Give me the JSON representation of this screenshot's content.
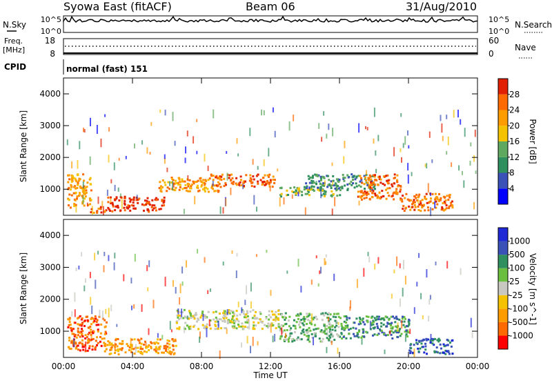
{
  "header": {
    "station": "Syowa East (fitACF)",
    "beam": "Beam 06",
    "date": "31/Aug/2010"
  },
  "panels": {
    "nsky": {
      "label": "N.Sky",
      "right_label": "N.Search",
      "ticks": [
        "10^5",
        "10^0"
      ],
      "right_ticks": [
        "10^5",
        "10^0"
      ]
    },
    "freq": {
      "label_line1": "Freq.",
      "label_line2": "[MHz]",
      "ticks": [
        "18",
        "8"
      ],
      "right_label": "Nave",
      "right_ticks": [
        "60",
        "0"
      ]
    },
    "cpid": {
      "label": "CPID",
      "value": "normal (fast) 151"
    }
  },
  "colors": {
    "power": [
      "#0000ff",
      "#3a52b8",
      "#2f8f5f",
      "#5fa85f",
      "#f5c200",
      "#ff9d00",
      "#ff6a00",
      "#e02000"
    ],
    "velocity": [
      "#ff0000",
      "#ff6a00",
      "#ff9d00",
      "#f5c200",
      "#c8c8c0",
      "#6abf40",
      "#2f8f5f",
      "#3a52b8",
      "#1f2ad6"
    ]
  },
  "chart_data": [
    {
      "type": "heatmap",
      "title": "Power",
      "ylabel": "Slant Range [km]",
      "colorbar_label": "Power [dB]",
      "colorbar_ticks": [
        "28",
        "24",
        "20",
        "16",
        "12",
        "8",
        "4"
      ],
      "y_ticks": [
        "4000",
        "3000",
        "2000",
        "1000"
      ],
      "ylim": [
        180,
        4500
      ],
      "xlim": [
        0,
        24
      ],
      "bands": [
        {
          "t": [
            0.2,
            1.6
          ],
          "r": [
            450,
            1500
          ],
          "c": 5
        },
        {
          "t": [
            1.5,
            2.5
          ],
          "r": [
            280,
            500
          ],
          "c": 6
        },
        {
          "t": [
            2.5,
            5.8
          ],
          "r": [
            320,
            800
          ],
          "c": 7
        },
        {
          "t": [
            5.5,
            9.0
          ],
          "r": [
            950,
            1400
          ],
          "c": 5
        },
        {
          "t": [
            8.5,
            12.2
          ],
          "r": [
            1100,
            1500
          ],
          "c": 6
        },
        {
          "t": [
            12.5,
            16.0
          ],
          "r": [
            800,
            1100
          ],
          "c": 3
        },
        {
          "t": [
            14.0,
            18.0
          ],
          "r": [
            1000,
            1500
          ],
          "c": 2
        },
        {
          "t": [
            17.0,
            19.5
          ],
          "r": [
            700,
            1500
          ],
          "c": 6
        },
        {
          "t": [
            19.5,
            22.5
          ],
          "r": [
            350,
            900
          ],
          "c": 6
        }
      ]
    },
    {
      "type": "heatmap",
      "title": "Velocity",
      "xlabel": "Time UT",
      "ylabel": "Slant Range [km]",
      "colorbar_label": "Velocity [m s^-1]",
      "colorbar_ticks": [
        "1000",
        "500",
        "100",
        "25",
        "-25",
        "-100",
        "-500",
        "-1000"
      ],
      "y_ticks": [
        "4000",
        "3000",
        "2000",
        "1000"
      ],
      "x_ticks": [
        "00:00",
        "04:00",
        "08:00",
        "12:00",
        "16:00",
        "20:00",
        "00:00"
      ],
      "ylim": [
        180,
        4500
      ],
      "xlim": [
        0,
        24
      ],
      "bands": [
        {
          "t": [
            0.2,
            2.5
          ],
          "r": [
            400,
            1500
          ],
          "c": 1
        },
        {
          "t": [
            2.5,
            6.5
          ],
          "r": [
            300,
            800
          ],
          "c": 2
        },
        {
          "t": [
            6.5,
            12.5
          ],
          "r": [
            1100,
            1700
          ],
          "c": 4
        },
        {
          "t": [
            12.5,
            16.0
          ],
          "r": [
            700,
            1600
          ],
          "c": 5
        },
        {
          "t": [
            16.0,
            20.0
          ],
          "r": [
            800,
            1500
          ],
          "c": 6
        },
        {
          "t": [
            20.0,
            22.5
          ],
          "r": [
            300,
            800
          ],
          "c": 7
        }
      ]
    }
  ]
}
